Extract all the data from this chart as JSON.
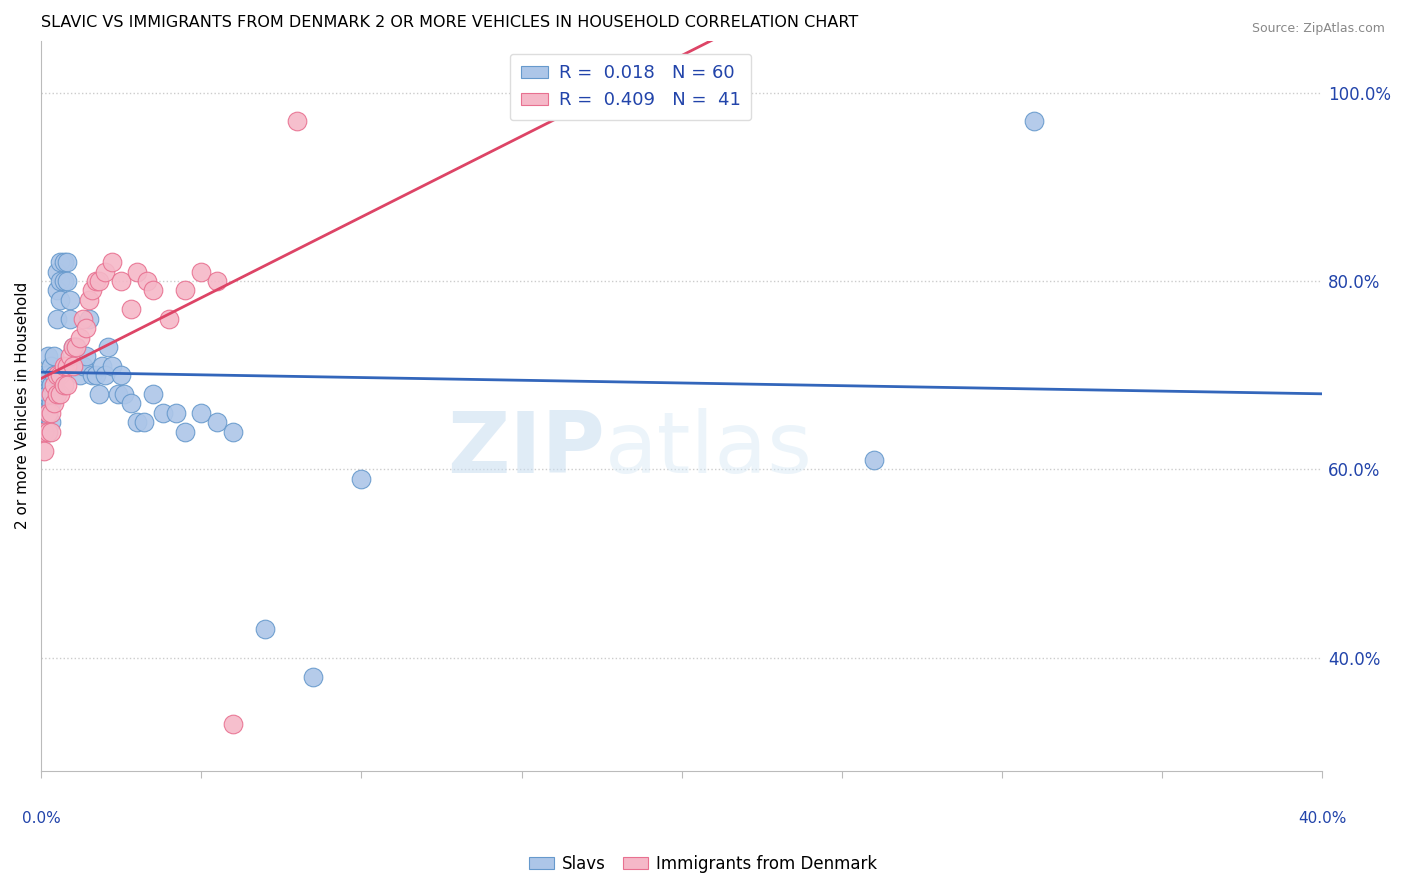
{
  "title": "SLAVIC VS IMMIGRANTS FROM DENMARK 2 OR MORE VEHICLES IN HOUSEHOLD CORRELATION CHART",
  "source": "Source: ZipAtlas.com",
  "ylabel": "2 or more Vehicles in Household",
  "watermark_zip": "ZIP",
  "watermark_atlas": "atlas",
  "legend_blue_r": "0.018",
  "legend_blue_n": "60",
  "legend_pink_r": "0.409",
  "legend_pink_n": "41",
  "blue_fill": "#adc6e8",
  "pink_fill": "#f5b8c8",
  "blue_edge": "#6699cc",
  "pink_edge": "#e87090",
  "blue_line": "#3366bb",
  "pink_line": "#dd4466",
  "legend_color": "#2244aa",
  "ymin": 0.28,
  "ymax": 1.055,
  "xmin": 0.0,
  "xmax": 0.4,
  "yticks": [
    1.0,
    0.8,
    0.6,
    0.4
  ],
  "ytick_labels": [
    "100.0%",
    "80.0%",
    "60.0%",
    "40.0%"
  ],
  "slavs_x": [
    0.001,
    0.001,
    0.001,
    0.002,
    0.002,
    0.002,
    0.002,
    0.002,
    0.003,
    0.003,
    0.003,
    0.003,
    0.004,
    0.004,
    0.004,
    0.005,
    0.005,
    0.005,
    0.006,
    0.006,
    0.006,
    0.007,
    0.007,
    0.008,
    0.008,
    0.009,
    0.009,
    0.01,
    0.01,
    0.011,
    0.011,
    0.012,
    0.013,
    0.014,
    0.015,
    0.016,
    0.017,
    0.018,
    0.019,
    0.02,
    0.021,
    0.022,
    0.024,
    0.025,
    0.026,
    0.028,
    0.03,
    0.032,
    0.035,
    0.038,
    0.042,
    0.045,
    0.05,
    0.055,
    0.06,
    0.07,
    0.085,
    0.1,
    0.26,
    0.31
  ],
  "slavs_y": [
    0.7,
    0.68,
    0.66,
    0.72,
    0.7,
    0.68,
    0.66,
    0.64,
    0.71,
    0.69,
    0.67,
    0.65,
    0.72,
    0.7,
    0.68,
    0.81,
    0.79,
    0.76,
    0.82,
    0.8,
    0.78,
    0.82,
    0.8,
    0.82,
    0.8,
    0.78,
    0.76,
    0.73,
    0.71,
    0.73,
    0.71,
    0.7,
    0.71,
    0.72,
    0.76,
    0.7,
    0.7,
    0.68,
    0.71,
    0.7,
    0.73,
    0.71,
    0.68,
    0.7,
    0.68,
    0.67,
    0.65,
    0.65,
    0.68,
    0.66,
    0.66,
    0.64,
    0.66,
    0.65,
    0.64,
    0.43,
    0.38,
    0.59,
    0.61,
    0.97
  ],
  "denmark_x": [
    0.001,
    0.001,
    0.002,
    0.002,
    0.003,
    0.003,
    0.003,
    0.004,
    0.004,
    0.005,
    0.005,
    0.006,
    0.006,
    0.007,
    0.007,
    0.008,
    0.008,
    0.009,
    0.01,
    0.01,
    0.011,
    0.012,
    0.013,
    0.014,
    0.015,
    0.016,
    0.017,
    0.018,
    0.02,
    0.022,
    0.025,
    0.028,
    0.03,
    0.033,
    0.035,
    0.04,
    0.045,
    0.05,
    0.055,
    0.06,
    0.08
  ],
  "denmark_y": [
    0.64,
    0.62,
    0.66,
    0.64,
    0.68,
    0.66,
    0.64,
    0.69,
    0.67,
    0.7,
    0.68,
    0.7,
    0.68,
    0.71,
    0.69,
    0.71,
    0.69,
    0.72,
    0.73,
    0.71,
    0.73,
    0.74,
    0.76,
    0.75,
    0.78,
    0.79,
    0.8,
    0.8,
    0.81,
    0.82,
    0.8,
    0.77,
    0.81,
    0.8,
    0.79,
    0.76,
    0.79,
    0.81,
    0.8,
    0.33,
    0.97
  ],
  "figsize": [
    14.06,
    8.92
  ],
  "dpi": 100
}
